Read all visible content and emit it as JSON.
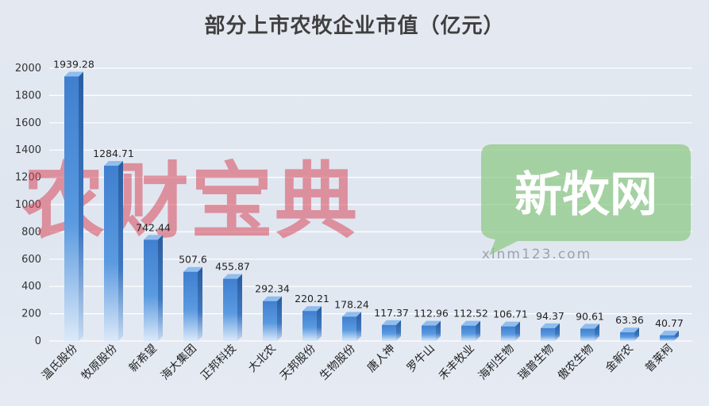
{
  "colors": {
    "bar_front": "#4f8ed6",
    "bar_side": "#2f64a8",
    "bar_top": "#8fbdee",
    "grid": "#ffffff",
    "watermark_left": "#d9475a",
    "watermark_right": "#8cc983"
  },
  "watermarks": {
    "left_text": "农财宝典",
    "right_text": "新牧网",
    "right_url": "xinm123.com"
  },
  "chart_data": {
    "type": "bar",
    "title": "部分上市农牧企业市值（亿元）",
    "xlabel": "",
    "ylabel": "",
    "ylim": [
      0,
      2000
    ],
    "yticks": [
      0,
      200,
      400,
      600,
      800,
      1000,
      1200,
      1400,
      1600,
      1800,
      2000
    ],
    "grid": true,
    "legend": "none",
    "categories": [
      "温氏股份",
      "牧原股份",
      "新希望",
      "海大集团",
      "正邦科技",
      "大北农",
      "天邦股份",
      "生物股份",
      "唐人神",
      "罗牛山",
      "禾丰牧业",
      "海利生物",
      "瑞普生物",
      "傲农生物",
      "金新农",
      "普莱柯"
    ],
    "values": [
      1939.28,
      1284.71,
      742.44,
      507.6,
      455.87,
      292.34,
      220.21,
      178.24,
      117.37,
      112.96,
      112.52,
      106.71,
      94.37,
      90.61,
      63.36,
      40.77
    ],
    "value_labels": [
      "1939.28",
      "1284.71",
      "742.44",
      "507.6",
      "455.87",
      "292.34",
      "220.21",
      "178.24",
      "117.37",
      "112.96",
      "112.52",
      "106.71",
      "94.37",
      "90.61",
      "63.36",
      "40.77"
    ]
  }
}
